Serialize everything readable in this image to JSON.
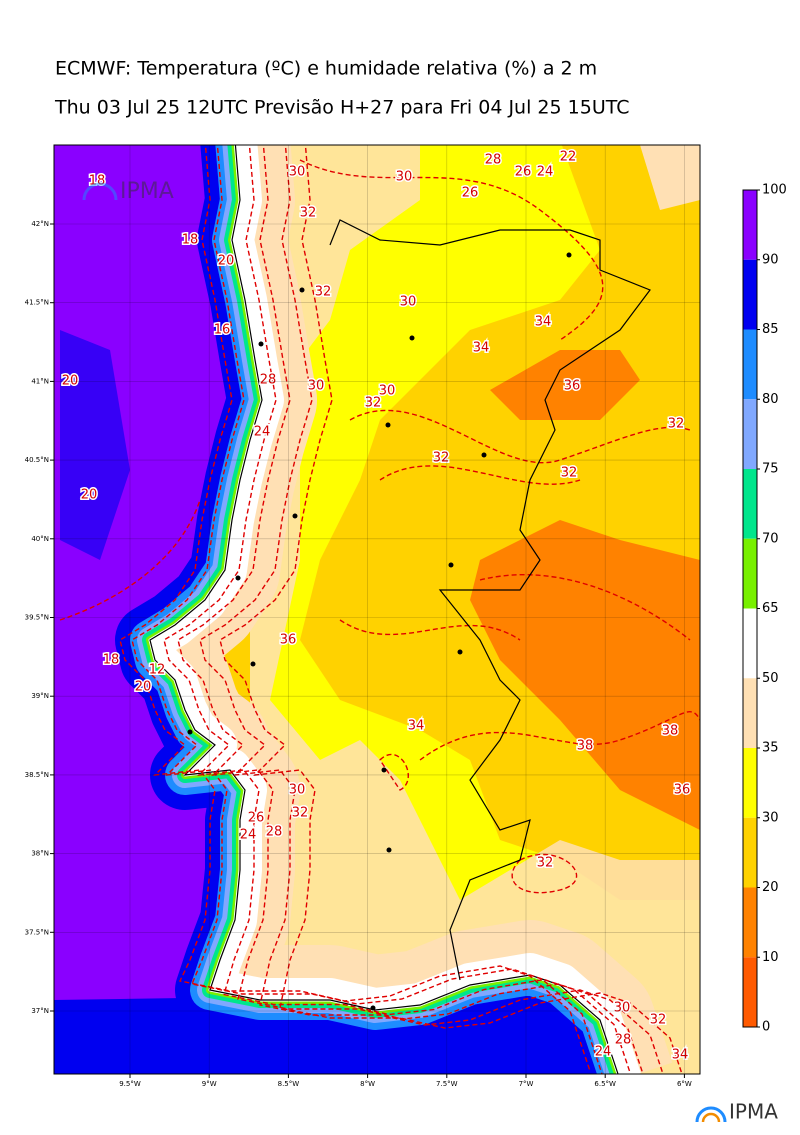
{
  "header": {
    "title": "ECMWF: Temperatura (ºC) e humidade relativa (%) a 2 m",
    "subtitle": "Thu 03 Jul 25 12UTC Previsão H+27 para Fri 04 Jul 25 15UTC"
  },
  "map": {
    "lon_ticks": [
      "9.5°W",
      "9°W",
      "8.5°W",
      "8°W",
      "7.5°W",
      "7°W",
      "6.5°W",
      "6°W"
    ],
    "lat_ticks": [
      "42°N",
      "41.5°N",
      "41°N",
      "40.5°N",
      "40°N",
      "39.5°N",
      "39°N",
      "38.5°N",
      "38°N",
      "37.5°N",
      "37°N"
    ],
    "contour_labels": [
      18,
      30,
      32,
      30,
      28,
      26,
      26,
      24,
      22,
      18,
      20,
      32,
      30,
      16,
      34,
      34,
      20,
      28,
      30,
      30,
      32,
      36,
      24,
      32,
      32,
      32,
      20,
      36,
      18,
      12,
      20,
      34,
      38,
      38,
      36,
      30,
      32,
      26,
      28,
      24,
      32,
      30,
      32,
      24,
      28,
      34
    ],
    "watermark": "IPMA"
  },
  "colorbar": {
    "levels": [
      100,
      90,
      85,
      80,
      75,
      70,
      65,
      50,
      35,
      30,
      20,
      10,
      0
    ],
    "colors": [
      "#8a00ff",
      "#0000f0",
      "#1e8cff",
      "#80a8ff",
      "#00e68c",
      "#78f000",
      "#ffffff",
      "#ffe0b4",
      "#ffff00",
      "#ffd200",
      "#ff8200",
      "#ff5a00"
    ]
  },
  "logo": "IPMA"
}
